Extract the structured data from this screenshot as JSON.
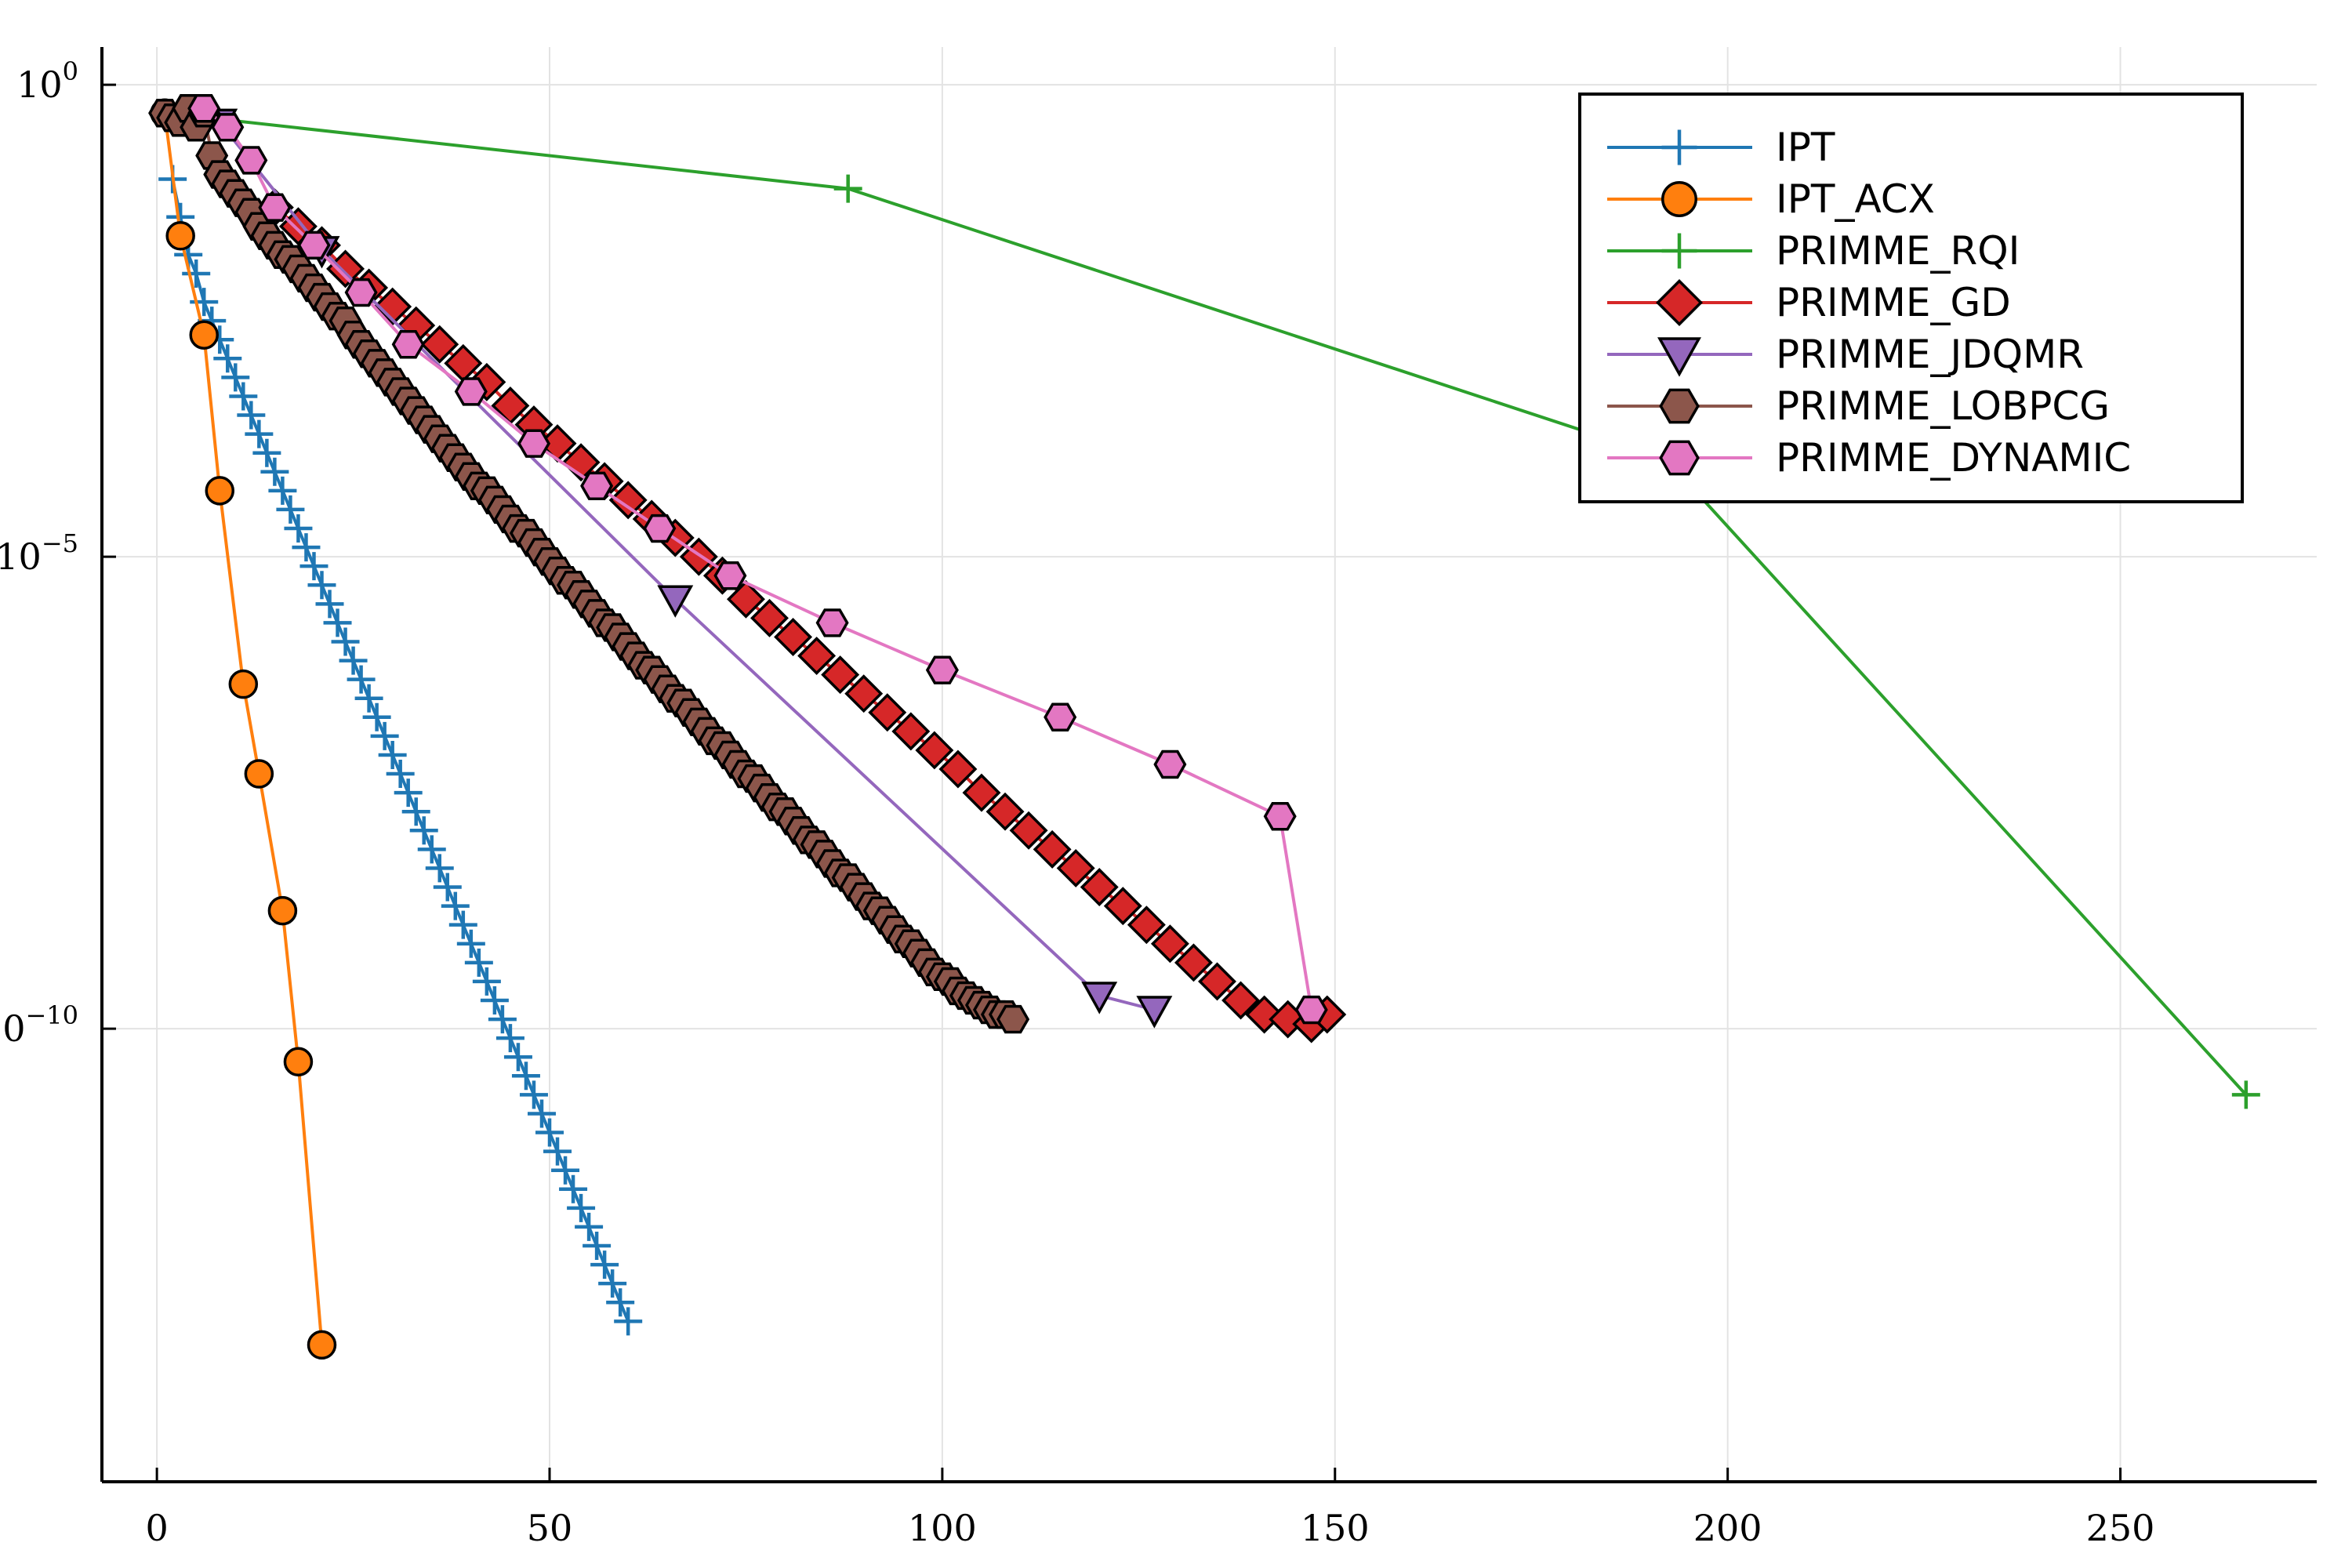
{
  "chart_data": {
    "type": "line",
    "title": "",
    "xlabel": "",
    "ylabel": "",
    "xlim": [
      -7,
      275
    ],
    "ylim": [
      -14.8,
      0.4
    ],
    "y_scale": "log10",
    "grid": true,
    "legend_position": "top-right",
    "x_ticks": [
      {
        "v": 0,
        "label": "0"
      },
      {
        "v": 50,
        "label": "50"
      },
      {
        "v": 100,
        "label": "100"
      },
      {
        "v": 150,
        "label": "150"
      },
      {
        "v": 200,
        "label": "200"
      },
      {
        "v": 250,
        "label": "250"
      }
    ],
    "y_ticks": [
      {
        "v": 0,
        "label": "10",
        "exp": "0"
      },
      {
        "v": -5,
        "label": "10",
        "exp": "−5"
      },
      {
        "v": -10,
        "label": "10",
        "exp": "−10"
      }
    ],
    "series": [
      {
        "name": "IPT",
        "color": "#1f77b4",
        "marker": "plus",
        "x": [
          2,
          3,
          4,
          5,
          6,
          7,
          8,
          9,
          10,
          11,
          12,
          13,
          14,
          15,
          16,
          17,
          18,
          19,
          20,
          21,
          22,
          23,
          24,
          25,
          26,
          27,
          28,
          29,
          30,
          31,
          32,
          33,
          34,
          35,
          36,
          37,
          38,
          39,
          40,
          41,
          42,
          43,
          44,
          45,
          46,
          47,
          48,
          49,
          50,
          51,
          52,
          53,
          54,
          55,
          56,
          57,
          58,
          59,
          60
        ],
        "y": [
          -1.0,
          -1.4,
          -1.8,
          -2.0,
          -2.3,
          -2.5,
          -2.7,
          -2.9,
          -3.1,
          -3.3,
          -3.5,
          -3.7,
          -3.9,
          -4.1,
          -4.3,
          -4.5,
          -4.7,
          -4.9,
          -5.1,
          -5.3,
          -5.5,
          -5.7,
          -5.9,
          -6.1,
          -6.3,
          -6.5,
          -6.7,
          -6.9,
          -7.1,
          -7.3,
          -7.5,
          -7.7,
          -7.9,
          -8.1,
          -8.3,
          -8.5,
          -8.7,
          -8.9,
          -9.1,
          -9.3,
          -9.5,
          -9.7,
          -9.9,
          -10.1,
          -10.3,
          -10.5,
          -10.7,
          -10.9,
          -11.1,
          -11.3,
          -11.5,
          -11.7,
          -11.9,
          -12.1,
          -12.3,
          -12.5,
          -12.7,
          -12.9,
          -13.1
        ]
      },
      {
        "name": "IPT_ACX",
        "color": "#ff7f0e",
        "marker": "circle",
        "x": [
          1,
          3,
          6,
          8,
          11,
          13,
          16,
          18,
          21
        ],
        "y": [
          -0.3,
          -1.6,
          -2.65,
          -4.3,
          -6.35,
          -7.3,
          -8.75,
          -10.35,
          -13.35
        ]
      },
      {
        "name": "PRIMME_RQI",
        "color": "#2ca02c",
        "marker": "plus",
        "x": [
          1,
          88,
          192,
          266
        ],
        "y": [
          -0.3,
          -1.1,
          -3.95,
          -10.7
        ]
      },
      {
        "name": "PRIMME_GD",
        "color": "#d62728",
        "marker": "diamond",
        "x": [
          15,
          18,
          21,
          24,
          27,
          30,
          33,
          36,
          39,
          42,
          45,
          48,
          51,
          54,
          57,
          60,
          63,
          66,
          69,
          72,
          75,
          78,
          81,
          84,
          87,
          90,
          93,
          96,
          99,
          102,
          105,
          108,
          111,
          114,
          117,
          120,
          123,
          126,
          129,
          132,
          135,
          138,
          141,
          144,
          147,
          149
        ],
        "y": [
          -1.3,
          -1.5,
          -1.7,
          -1.95,
          -2.15,
          -2.35,
          -2.55,
          -2.75,
          -2.95,
          -3.15,
          -3.4,
          -3.6,
          -3.8,
          -4.0,
          -4.2,
          -4.4,
          -4.6,
          -4.8,
          -5.0,
          -5.2,
          -5.45,
          -5.65,
          -5.85,
          -6.05,
          -6.25,
          -6.45,
          -6.65,
          -6.85,
          -7.05,
          -7.25,
          -7.5,
          -7.7,
          -7.9,
          -8.1,
          -8.3,
          -8.5,
          -8.7,
          -8.9,
          -9.1,
          -9.3,
          -9.5,
          -9.7,
          -9.85,
          -9.9,
          -9.95,
          -9.85
        ]
      },
      {
        "name": "PRIMME_JDQMR",
        "color": "#9467bd",
        "marker": "tri-down",
        "x": [
          8,
          21,
          66,
          120,
          127
        ],
        "y": [
          -0.4,
          -1.75,
          -5.45,
          -9.65,
          -9.8
        ]
      },
      {
        "name": "PRIMME_LOBPCG",
        "color": "#8c564b",
        "marker": "hexagon",
        "x": [
          1,
          2,
          3,
          4,
          5,
          6,
          7,
          8,
          9,
          10,
          11,
          12,
          13,
          14,
          15,
          16,
          17,
          18,
          19,
          20,
          21,
          22,
          23,
          24,
          25,
          26,
          27,
          28,
          29,
          30,
          31,
          32,
          33,
          34,
          35,
          36,
          37,
          38,
          39,
          40,
          41,
          42,
          43,
          44,
          45,
          46,
          47,
          48,
          49,
          50,
          51,
          52,
          53,
          54,
          55,
          56,
          57,
          58,
          59,
          60,
          61,
          62,
          63,
          64,
          65,
          66,
          67,
          68,
          69,
          70,
          71,
          72,
          73,
          74,
          75,
          76,
          77,
          78,
          79,
          80,
          81,
          82,
          83,
          84,
          85,
          86,
          87,
          88,
          89,
          90,
          91,
          92,
          93,
          94,
          95,
          96,
          97,
          98,
          99,
          100,
          101,
          102,
          103,
          104,
          105,
          106,
          107,
          108,
          109
        ],
        "y": [
          -0.3,
          -0.35,
          -0.4,
          -0.25,
          -0.45,
          -0.3,
          -0.75,
          -0.95,
          -1.05,
          -1.15,
          -1.25,
          -1.35,
          -1.5,
          -1.6,
          -1.7,
          -1.8,
          -1.85,
          -1.95,
          -2.05,
          -2.15,
          -2.25,
          -2.35,
          -2.45,
          -2.5,
          -2.65,
          -2.75,
          -2.85,
          -2.95,
          -3.05,
          -3.15,
          -3.25,
          -3.35,
          -3.45,
          -3.55,
          -3.65,
          -3.75,
          -3.85,
          -3.95,
          -4.05,
          -4.15,
          -4.25,
          -4.3,
          -4.4,
          -4.5,
          -4.6,
          -4.7,
          -4.75,
          -4.85,
          -4.95,
          -5.05,
          -5.15,
          -5.25,
          -5.3,
          -5.4,
          -5.5,
          -5.6,
          -5.7,
          -5.75,
          -5.85,
          -5.95,
          -6.05,
          -6.15,
          -6.2,
          -6.3,
          -6.4,
          -6.5,
          -6.55,
          -6.65,
          -6.75,
          -6.85,
          -6.95,
          -7.0,
          -7.1,
          -7.2,
          -7.3,
          -7.35,
          -7.45,
          -7.55,
          -7.65,
          -7.7,
          -7.8,
          -7.9,
          -8.0,
          -8.05,
          -8.15,
          -8.25,
          -8.35,
          -8.4,
          -8.5,
          -8.6,
          -8.7,
          -8.75,
          -8.85,
          -8.95,
          -9.05,
          -9.1,
          -9.2,
          -9.3,
          -9.4,
          -9.45,
          -9.5,
          -9.6,
          -9.65,
          -9.7,
          -9.75,
          -9.8,
          -9.85,
          -9.85,
          -9.9
        ]
      },
      {
        "name": "PRIMME_DYNAMIC",
        "color": "#e377c2",
        "marker": "hexagon",
        "x": [
          6,
          9,
          12,
          15,
          20,
          26,
          32,
          40,
          48,
          56,
          64,
          73,
          86,
          100,
          115,
          129,
          143,
          147
        ],
        "y": [
          -0.25,
          -0.45,
          -0.8,
          -1.3,
          -1.7,
          -2.2,
          -2.75,
          -3.25,
          -3.8,
          -4.25,
          -4.7,
          -5.2,
          -5.7,
          -6.2,
          -6.7,
          -7.2,
          -7.75,
          -9.8
        ]
      }
    ]
  }
}
